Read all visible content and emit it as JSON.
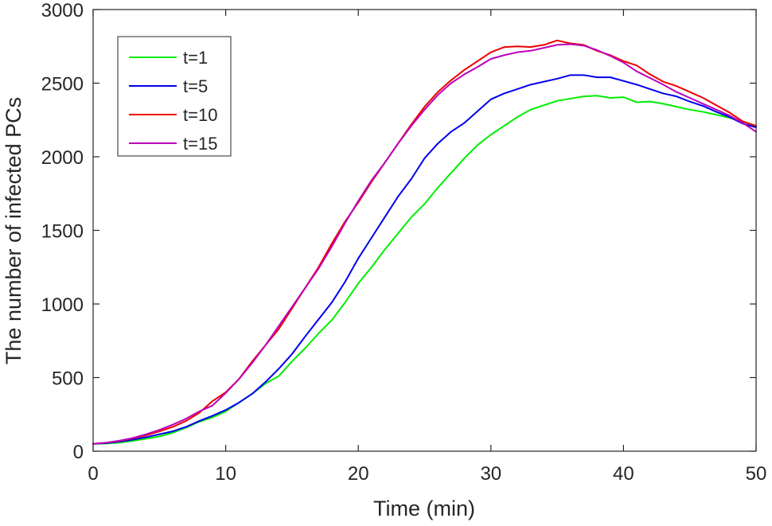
{
  "chart_data": {
    "type": "line",
    "title": "",
    "xlabel": "Time (min)",
    "ylabel": "The number of infected PCs",
    "xlim": [
      0,
      50
    ],
    "ylim": [
      0,
      3000
    ],
    "xticks": [
      0,
      10,
      20,
      30,
      40,
      50
    ],
    "yticks": [
      0,
      500,
      1000,
      1500,
      2000,
      2500,
      3000
    ],
    "grid": false,
    "legend_position": "top-left",
    "series": [
      {
        "name": "t=1",
        "color": "#00ee00",
        "x": [
          0,
          1,
          2,
          3,
          4,
          5,
          6,
          7,
          8,
          9,
          10,
          11,
          12,
          13,
          14,
          15,
          16,
          17,
          18,
          19,
          20,
          21,
          22,
          23,
          24,
          25,
          26,
          27,
          28,
          29,
          30,
          31,
          32,
          33,
          34,
          35,
          36,
          37,
          38,
          39,
          40,
          41,
          42,
          43,
          44,
          45,
          46,
          47,
          48,
          49,
          50
        ],
        "y": [
          50,
          52,
          58,
          70,
          85,
          100,
          125,
          160,
          200,
          230,
          270,
          330,
          390,
          460,
          510,
          610,
          700,
          800,
          890,
          1010,
          1140,
          1250,
          1370,
          1480,
          1590,
          1680,
          1790,
          1890,
          1990,
          2080,
          2150,
          2210,
          2270,
          2320,
          2350,
          2380,
          2395,
          2410,
          2415,
          2400,
          2405,
          2370,
          2375,
          2360,
          2340,
          2320,
          2305,
          2285,
          2265,
          2240,
          2210
        ]
      },
      {
        "name": "t=5",
        "color": "#0000ee",
        "x": [
          0,
          1,
          2,
          3,
          4,
          5,
          6,
          7,
          8,
          9,
          10,
          11,
          12,
          13,
          14,
          15,
          16,
          17,
          18,
          19,
          20,
          21,
          22,
          23,
          24,
          25,
          26,
          27,
          28,
          29,
          30,
          31,
          32,
          33,
          34,
          35,
          36,
          37,
          38,
          39,
          40,
          41,
          42,
          43,
          44,
          45,
          46,
          47,
          48,
          49,
          50
        ],
        "y": [
          50,
          55,
          65,
          78,
          95,
          115,
          135,
          165,
          205,
          240,
          280,
          330,
          390,
          470,
          560,
          660,
          780,
          895,
          1010,
          1150,
          1310,
          1450,
          1590,
          1730,
          1850,
          1990,
          2090,
          2170,
          2230,
          2310,
          2390,
          2430,
          2460,
          2490,
          2510,
          2530,
          2555,
          2555,
          2540,
          2540,
          2515,
          2490,
          2460,
          2430,
          2410,
          2375,
          2345,
          2305,
          2270,
          2225,
          2200
        ]
      },
      {
        "name": "t=10",
        "color": "#ee0000",
        "x": [
          0,
          1,
          2,
          3,
          4,
          5,
          6,
          7,
          8,
          9,
          10,
          11,
          12,
          13,
          14,
          15,
          16,
          17,
          18,
          19,
          20,
          21,
          22,
          23,
          24,
          25,
          26,
          27,
          28,
          29,
          30,
          31,
          32,
          33,
          34,
          35,
          36,
          37,
          38,
          39,
          40,
          41,
          42,
          43,
          44,
          45,
          46,
          47,
          48,
          49,
          50
        ],
        "y": [
          50,
          58,
          70,
          88,
          108,
          135,
          165,
          205,
          260,
          340,
          400,
          490,
          610,
          720,
          830,
          970,
          1110,
          1250,
          1410,
          1560,
          1690,
          1830,
          1960,
          2090,
          2220,
          2340,
          2440,
          2520,
          2590,
          2650,
          2710,
          2745,
          2750,
          2745,
          2760,
          2790,
          2770,
          2760,
          2720,
          2690,
          2650,
          2620,
          2560,
          2510,
          2480,
          2440,
          2400,
          2350,
          2300,
          2240,
          2210
        ]
      },
      {
        "name": "t=15",
        "color": "#bb00bb",
        "x": [
          0,
          1,
          2,
          3,
          4,
          5,
          6,
          7,
          8,
          9,
          10,
          11,
          12,
          13,
          14,
          15,
          16,
          17,
          18,
          19,
          20,
          21,
          22,
          23,
          24,
          25,
          26,
          27,
          28,
          29,
          30,
          31,
          32,
          33,
          34,
          35,
          36,
          37,
          38,
          39,
          40,
          41,
          42,
          43,
          44,
          45,
          46,
          47,
          48,
          49,
          50
        ],
        "y": [
          50,
          58,
          72,
          90,
          115,
          145,
          180,
          220,
          270,
          310,
          395,
          490,
          600,
          720,
          850,
          980,
          1110,
          1240,
          1390,
          1550,
          1700,
          1840,
          1960,
          2090,
          2210,
          2320,
          2420,
          2500,
          2560,
          2610,
          2665,
          2690,
          2710,
          2720,
          2740,
          2760,
          2765,
          2755,
          2725,
          2685,
          2640,
          2580,
          2535,
          2490,
          2440,
          2400,
          2360,
          2320,
          2280,
          2230,
          2170
        ]
      }
    ]
  }
}
